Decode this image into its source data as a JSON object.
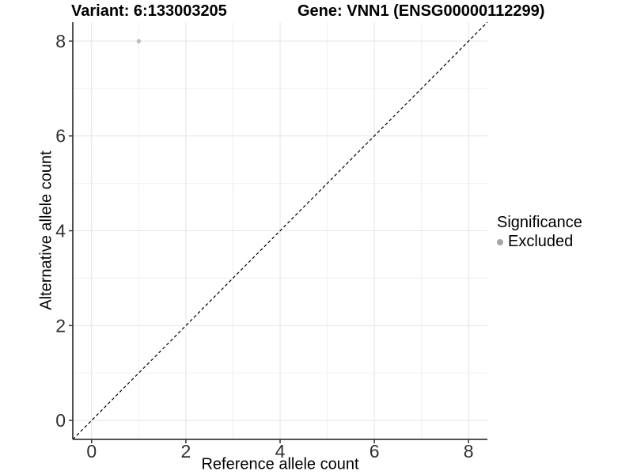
{
  "chart_data": {
    "type": "scatter",
    "titles": [
      "Variant: 6:133003205",
      "Gene: VNN1 (ENSG00000112299)"
    ],
    "xlabel": "Reference allele count",
    "ylabel": "Alternative allele count",
    "xlim": [
      -0.4,
      8.4
    ],
    "ylim": [
      -0.4,
      8.4
    ],
    "x_ticks": [
      0,
      2,
      4,
      6,
      8
    ],
    "y_ticks": [
      0,
      2,
      4,
      6,
      8
    ],
    "x_minor_ticks": [
      1,
      3,
      5,
      7
    ],
    "y_minor_ticks": [
      1,
      3,
      5,
      7
    ],
    "grid": true,
    "reference_line": {
      "type": "identity",
      "slope": 1,
      "intercept": 0,
      "style": "dashed"
    },
    "series": [
      {
        "name": "Excluded",
        "points": [
          {
            "x": 1,
            "y": 8
          }
        ]
      }
    ],
    "legend": {
      "title": "Significance",
      "position": "right",
      "items": [
        {
          "label": "Excluded",
          "color": "#a6a6a6"
        }
      ]
    },
    "colors": {
      "point": "#bdbdbd",
      "grid_major": "#e4e4e4",
      "grid_minor": "#f0f0f0",
      "axis_line": "#3c3c3c",
      "tick_mark": "#333333",
      "tick_label": "#303030",
      "reference_line": "#000000",
      "background": "#ffffff"
    }
  }
}
